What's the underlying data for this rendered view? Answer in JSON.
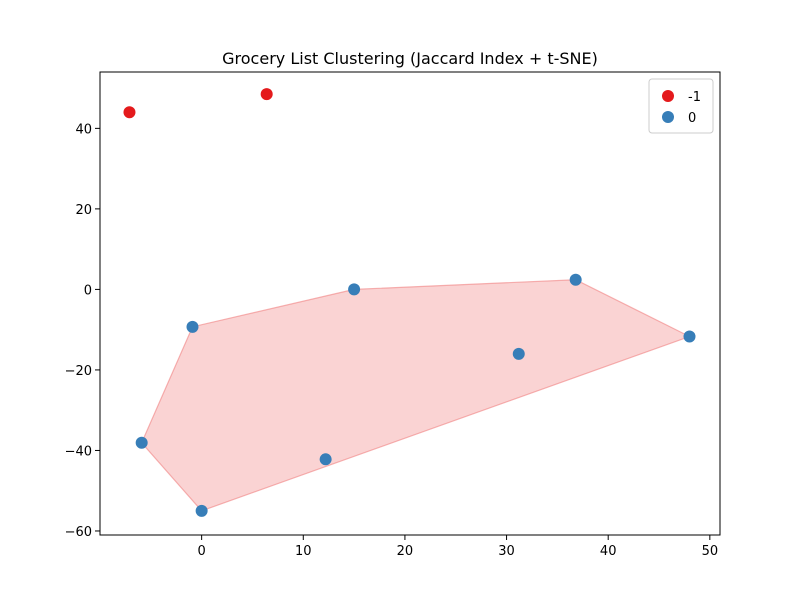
{
  "chart_data": {
    "type": "scatter",
    "title": "Grocery List Clustering (Jaccard Index + t-SNE)",
    "xlabel": "",
    "ylabel": "",
    "xlim": [
      -10,
      51
    ],
    "ylim": [
      -61,
      54
    ],
    "x_ticks": [
      0,
      10,
      20,
      30,
      40,
      50
    ],
    "y_ticks": [
      -60,
      -40,
      -20,
      0,
      20,
      40
    ],
    "x_tick_labels": [
      "0",
      "10",
      "20",
      "30",
      "40",
      "50"
    ],
    "y_tick_labels": [
      "−60",
      "−40",
      "−20",
      "0",
      "20",
      "40"
    ],
    "grid": false,
    "legend_position": "top-right",
    "series": [
      {
        "name": "-1",
        "color": "#e41a1c",
        "points": [
          {
            "x": -7.1,
            "y": 44.0
          },
          {
            "x": 6.4,
            "y": 48.5
          }
        ]
      },
      {
        "name": "0",
        "color": "#377eb8",
        "points": [
          {
            "x": 15.0,
            "y": 0.0
          },
          {
            "x": 36.8,
            "y": 2.4
          },
          {
            "x": -0.9,
            "y": -9.3
          },
          {
            "x": 48.0,
            "y": -11.7
          },
          {
            "x": 31.2,
            "y": -16.0
          },
          {
            "x": -5.9,
            "y": -38.1
          },
          {
            "x": 12.2,
            "y": -42.2
          },
          {
            "x": 0.0,
            "y": -55.0
          }
        ]
      }
    ],
    "hull": {
      "color": "#f08080",
      "points": [
        {
          "x": 0.0,
          "y": -55.0
        },
        {
          "x": 48.0,
          "y": -11.7
        },
        {
          "x": 36.8,
          "y": 2.4
        },
        {
          "x": 15.0,
          "y": 0.0
        },
        {
          "x": -0.9,
          "y": -9.3
        },
        {
          "x": -5.9,
          "y": -38.1
        }
      ]
    }
  }
}
